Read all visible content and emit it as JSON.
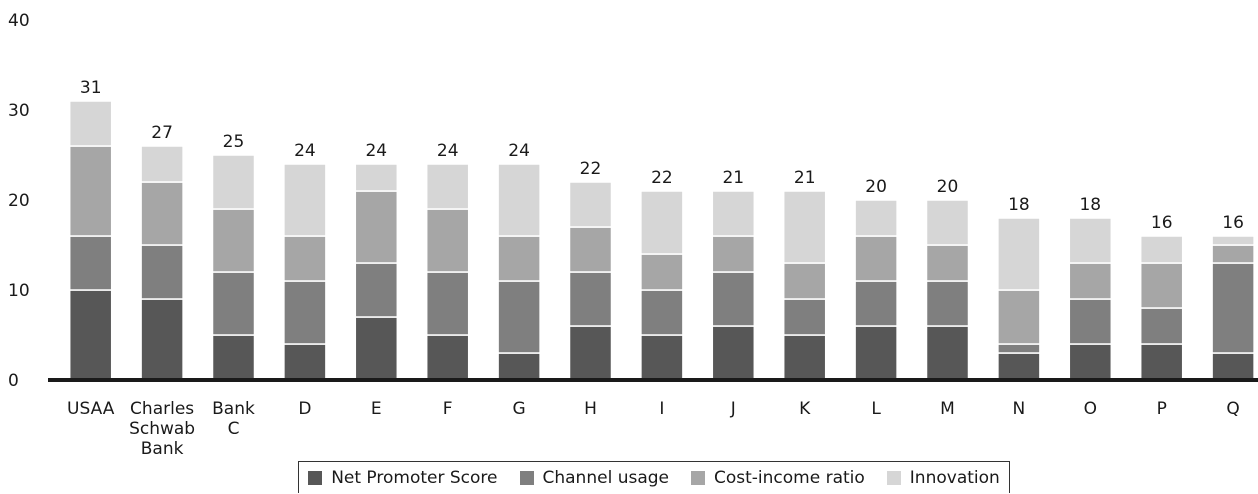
{
  "chart_data": {
    "type": "bar",
    "stacked": true,
    "categories": [
      "USAA",
      "Charles\nSchwab\nBank",
      "Bank\nC",
      "D",
      "E",
      "F",
      "G",
      "H",
      "I",
      "J",
      "K",
      "L",
      "M",
      "N",
      "O",
      "P",
      "Q"
    ],
    "series": [
      {
        "name": "Net Promoter Score",
        "color": "#575757",
        "values": [
          10,
          9,
          5,
          4,
          7,
          5,
          3,
          6,
          5,
          6,
          5,
          6,
          6,
          3,
          4,
          4,
          3
        ]
      },
      {
        "name": "Channel usage",
        "color": "#7f7f7f",
        "values": [
          6,
          6,
          7,
          7,
          6,
          7,
          8,
          6,
          5,
          6,
          4,
          5,
          5,
          1,
          5,
          4,
          10
        ]
      },
      {
        "name": "Cost-income ratio",
        "color": "#a6a6a6",
        "values": [
          10,
          7,
          7,
          5,
          8,
          7,
          5,
          5,
          4,
          4,
          4,
          5,
          4,
          6,
          4,
          5,
          2
        ]
      },
      {
        "name": "Innovation",
        "color": "#d6d6d6",
        "values": [
          5,
          4,
          6,
          8,
          3,
          5,
          8,
          5,
          7,
          5,
          8,
          4,
          5,
          8,
          5,
          3,
          1
        ]
      }
    ],
    "totals": [
      31,
      27,
      25,
      24,
      24,
      24,
      24,
      22,
      22,
      21,
      21,
      20,
      20,
      18,
      18,
      16,
      16
    ],
    "yticks": [
      0,
      10,
      20,
      30,
      40
    ],
    "ylim": [
      0,
      40
    ],
    "grid": false,
    "legend_position": "bottom"
  }
}
